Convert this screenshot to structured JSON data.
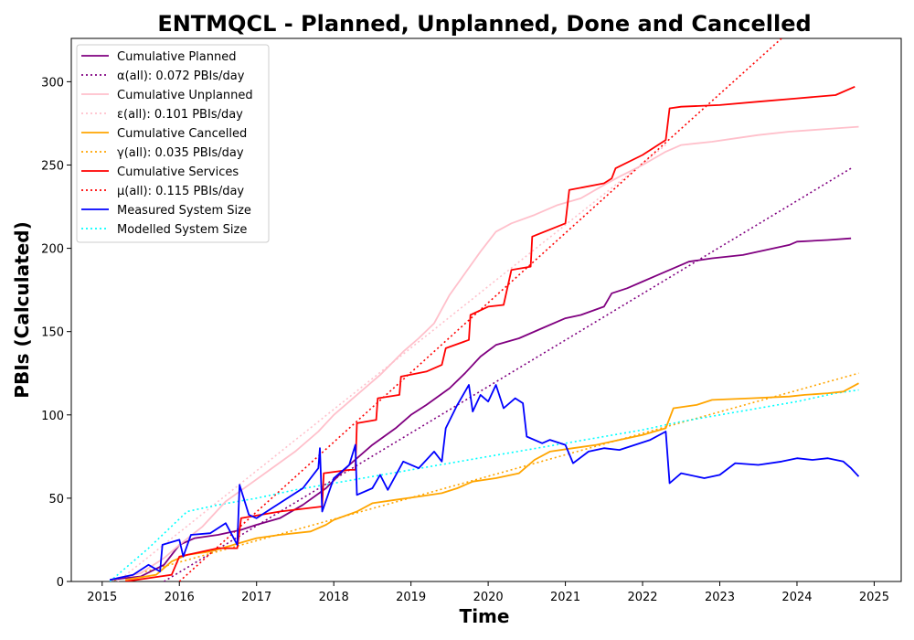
{
  "chart_data": {
    "type": "line",
    "title": "ENTMQCL - Planned, Unplanned, Done  and Cancelled",
    "xlabel": "Time",
    "ylabel": "PBIs (Calculated)",
    "xlim": [
      2014.6,
      2025.35
    ],
    "ylim": [
      0,
      326
    ],
    "xticks": [
      2015,
      2016,
      2017,
      2018,
      2019,
      2020,
      2021,
      2022,
      2023,
      2024,
      2025
    ],
    "yticks": [
      0,
      50,
      100,
      150,
      200,
      250,
      300
    ],
    "grid": false,
    "legend_position": "top-left",
    "series": [
      {
        "name": "Cumulative Planned",
        "color": "#800080",
        "style": "solid",
        "points": [
          [
            2015.1,
            1
          ],
          [
            2015.5,
            3
          ],
          [
            2015.8,
            10
          ],
          [
            2016.0,
            22
          ],
          [
            2016.2,
            26
          ],
          [
            2016.5,
            28
          ],
          [
            2016.8,
            31
          ],
          [
            2017.0,
            34
          ],
          [
            2017.3,
            38
          ],
          [
            2017.6,
            46
          ],
          [
            2017.9,
            56
          ],
          [
            2018.2,
            70
          ],
          [
            2018.5,
            82
          ],
          [
            2018.8,
            92
          ],
          [
            2019.0,
            100
          ],
          [
            2019.2,
            106
          ],
          [
            2019.5,
            116
          ],
          [
            2019.7,
            125
          ],
          [
            2019.9,
            135
          ],
          [
            2020.1,
            142
          ],
          [
            2020.4,
            146
          ],
          [
            2020.7,
            152
          ],
          [
            2021.0,
            158
          ],
          [
            2021.2,
            160
          ],
          [
            2021.5,
            165
          ],
          [
            2021.6,
            173
          ],
          [
            2021.8,
            176
          ],
          [
            2022.0,
            180
          ],
          [
            2022.2,
            184
          ],
          [
            2022.4,
            188
          ],
          [
            2022.6,
            192
          ],
          [
            2022.9,
            194
          ],
          [
            2023.3,
            196
          ],
          [
            2023.6,
            199
          ],
          [
            2023.9,
            202
          ],
          [
            2024.0,
            204
          ],
          [
            2024.4,
            205
          ],
          [
            2024.7,
            206
          ]
        ]
      },
      {
        "name": "α(all): 0.072 PBIs/day",
        "color": "#800080",
        "style": "dotted",
        "points": [
          [
            2015.8,
            0
          ],
          [
            2024.7,
            248
          ]
        ]
      },
      {
        "name": "Cumulative Unplanned",
        "color": "#ffc0cb",
        "style": "solid",
        "points": [
          [
            2015.1,
            1
          ],
          [
            2015.5,
            5
          ],
          [
            2015.8,
            14
          ],
          [
            2016.0,
            22
          ],
          [
            2016.3,
            33
          ],
          [
            2016.6,
            48
          ],
          [
            2016.9,
            58
          ],
          [
            2017.2,
            68
          ],
          [
            2017.5,
            78
          ],
          [
            2017.8,
            90
          ],
          [
            2018.0,
            100
          ],
          [
            2018.3,
            112
          ],
          [
            2018.6,
            124
          ],
          [
            2018.9,
            138
          ],
          [
            2019.1,
            146
          ],
          [
            2019.3,
            155
          ],
          [
            2019.5,
            172
          ],
          [
            2019.7,
            185
          ],
          [
            2019.9,
            198
          ],
          [
            2020.1,
            210
          ],
          [
            2020.3,
            215
          ],
          [
            2020.6,
            220
          ],
          [
            2020.9,
            226
          ],
          [
            2021.2,
            230
          ],
          [
            2021.5,
            238
          ],
          [
            2021.7,
            243
          ],
          [
            2022.0,
            250
          ],
          [
            2022.3,
            258
          ],
          [
            2022.5,
            262
          ],
          [
            2022.9,
            264
          ],
          [
            2023.2,
            266
          ],
          [
            2023.5,
            268
          ],
          [
            2023.9,
            270
          ],
          [
            2024.2,
            271
          ],
          [
            2024.5,
            272
          ],
          [
            2024.8,
            273
          ]
        ]
      },
      {
        "name": "ε(all): 0.101 PBIs/day",
        "color": "#ffc0cb",
        "style": "dotted",
        "points": [
          [
            2015.2,
            0
          ],
          [
            2022.3,
            262
          ]
        ]
      },
      {
        "name": "Cumulative Cancelled",
        "color": "#ffa500",
        "style": "solid",
        "points": [
          [
            2015.3,
            1
          ],
          [
            2015.7,
            4
          ],
          [
            2015.9,
            12
          ],
          [
            2016.1,
            16
          ],
          [
            2016.4,
            18
          ],
          [
            2016.7,
            22
          ],
          [
            2017.0,
            26
          ],
          [
            2017.3,
            28
          ],
          [
            2017.7,
            30
          ],
          [
            2017.9,
            34
          ],
          [
            2018.0,
            37
          ],
          [
            2018.3,
            42
          ],
          [
            2018.5,
            47
          ],
          [
            2018.8,
            49
          ],
          [
            2019.1,
            51
          ],
          [
            2019.4,
            53
          ],
          [
            2019.6,
            56
          ],
          [
            2019.8,
            60
          ],
          [
            2020.1,
            62
          ],
          [
            2020.4,
            65
          ],
          [
            2020.6,
            73
          ],
          [
            2020.8,
            78
          ],
          [
            2021.1,
            80
          ],
          [
            2021.4,
            82
          ],
          [
            2021.7,
            85
          ],
          [
            2022.0,
            88
          ],
          [
            2022.3,
            92
          ],
          [
            2022.4,
            104
          ],
          [
            2022.7,
            106
          ],
          [
            2022.9,
            109
          ],
          [
            2023.4,
            110
          ],
          [
            2023.9,
            111
          ],
          [
            2024.1,
            112
          ],
          [
            2024.4,
            113
          ],
          [
            2024.6,
            114
          ],
          [
            2024.8,
            119
          ]
        ]
      },
      {
        "name": "γ(all): 0.035 PBIs/day",
        "color": "#ffa500",
        "style": "dotted",
        "points": [
          [
            2015.1,
            0
          ],
          [
            2024.8,
            125
          ]
        ]
      },
      {
        "name": "Cumulative Services",
        "color": "#ff0000",
        "style": "solid",
        "points": [
          [
            2015.3,
            0
          ],
          [
            2015.75,
            3
          ],
          [
            2015.9,
            4
          ],
          [
            2016.0,
            15
          ],
          [
            2016.5,
            20
          ],
          [
            2016.75,
            20
          ],
          [
            2016.8,
            38
          ],
          [
            2017.3,
            42
          ],
          [
            2017.85,
            45
          ],
          [
            2017.87,
            65
          ],
          [
            2018.2,
            67
          ],
          [
            2018.28,
            67
          ],
          [
            2018.3,
            95
          ],
          [
            2018.55,
            97
          ],
          [
            2018.57,
            110
          ],
          [
            2018.85,
            112
          ],
          [
            2018.87,
            123
          ],
          [
            2019.2,
            126
          ],
          [
            2019.4,
            130
          ],
          [
            2019.45,
            140
          ],
          [
            2019.75,
            145
          ],
          [
            2019.77,
            160
          ],
          [
            2020.0,
            165
          ],
          [
            2020.2,
            166
          ],
          [
            2020.3,
            187
          ],
          [
            2020.55,
            189
          ],
          [
            2020.57,
            207
          ],
          [
            2021.0,
            215
          ],
          [
            2021.05,
            235
          ],
          [
            2021.5,
            239
          ],
          [
            2021.6,
            242
          ],
          [
            2021.65,
            248
          ],
          [
            2022.0,
            256
          ],
          [
            2022.3,
            265
          ],
          [
            2022.35,
            284
          ],
          [
            2022.5,
            285
          ],
          [
            2023.0,
            286
          ],
          [
            2023.5,
            288
          ],
          [
            2024.0,
            290
          ],
          [
            2024.5,
            292
          ],
          [
            2024.75,
            297
          ]
        ]
      },
      {
        "name": "μ(all): 0.115 PBIs/day",
        "color": "#ff0000",
        "style": "dotted",
        "points": [
          [
            2016.0,
            0
          ],
          [
            2022.0,
            251
          ],
          [
            2023.8,
            326
          ]
        ]
      },
      {
        "name": "Measured System Size",
        "color": "#0000ff",
        "style": "solid",
        "points": [
          [
            2015.1,
            1
          ],
          [
            2015.4,
            4
          ],
          [
            2015.6,
            10
          ],
          [
            2015.75,
            6
          ],
          [
            2015.78,
            22
          ],
          [
            2016.0,
            25
          ],
          [
            2016.05,
            15
          ],
          [
            2016.15,
            28
          ],
          [
            2016.4,
            29
          ],
          [
            2016.6,
            35
          ],
          [
            2016.75,
            22
          ],
          [
            2016.78,
            58
          ],
          [
            2016.9,
            40
          ],
          [
            2017.0,
            38
          ],
          [
            2017.2,
            44
          ],
          [
            2017.4,
            50
          ],
          [
            2017.6,
            56
          ],
          [
            2017.8,
            68
          ],
          [
            2017.82,
            80
          ],
          [
            2017.85,
            42
          ],
          [
            2018.0,
            62
          ],
          [
            2018.2,
            70
          ],
          [
            2018.28,
            82
          ],
          [
            2018.3,
            52
          ],
          [
            2018.5,
            56
          ],
          [
            2018.6,
            64
          ],
          [
            2018.7,
            55
          ],
          [
            2018.9,
            72
          ],
          [
            2019.1,
            68
          ],
          [
            2019.3,
            78
          ],
          [
            2019.4,
            72
          ],
          [
            2019.45,
            92
          ],
          [
            2019.6,
            106
          ],
          [
            2019.75,
            118
          ],
          [
            2019.8,
            102
          ],
          [
            2019.9,
            112
          ],
          [
            2020.0,
            108
          ],
          [
            2020.1,
            118
          ],
          [
            2020.2,
            104
          ],
          [
            2020.35,
            110
          ],
          [
            2020.45,
            107
          ],
          [
            2020.5,
            87
          ],
          [
            2020.7,
            83
          ],
          [
            2020.8,
            85
          ],
          [
            2021.0,
            82
          ],
          [
            2021.1,
            71
          ],
          [
            2021.3,
            78
          ],
          [
            2021.5,
            80
          ],
          [
            2021.7,
            79
          ],
          [
            2021.9,
            82
          ],
          [
            2022.1,
            85
          ],
          [
            2022.3,
            90
          ],
          [
            2022.35,
            59
          ],
          [
            2022.5,
            65
          ],
          [
            2022.8,
            62
          ],
          [
            2023.0,
            64
          ],
          [
            2023.2,
            71
          ],
          [
            2023.5,
            70
          ],
          [
            2023.8,
            72
          ],
          [
            2024.0,
            74
          ],
          [
            2024.2,
            73
          ],
          [
            2024.4,
            74
          ],
          [
            2024.6,
            72
          ],
          [
            2024.7,
            68
          ],
          [
            2024.8,
            63
          ]
        ]
      },
      {
        "name": "Modelled System Size",
        "color": "#00ffff",
        "style": "dotted",
        "points": [
          [
            2015.1,
            0
          ],
          [
            2015.6,
            20
          ],
          [
            2016.1,
            42
          ],
          [
            2016.5,
            46
          ],
          [
            2017.0,
            50
          ],
          [
            2017.5,
            55
          ],
          [
            2018.0,
            59
          ],
          [
            2018.5,
            63
          ],
          [
            2019.0,
            67
          ],
          [
            2019.5,
            71
          ],
          [
            2020.0,
            75
          ],
          [
            2020.5,
            79
          ],
          [
            2021.0,
            83
          ],
          [
            2021.5,
            87
          ],
          [
            2022.0,
            91
          ],
          [
            2022.5,
            96
          ],
          [
            2023.0,
            100
          ],
          [
            2023.5,
            104
          ],
          [
            2024.0,
            108
          ],
          [
            2024.5,
            113
          ],
          [
            2024.8,
            115
          ]
        ]
      }
    ]
  }
}
